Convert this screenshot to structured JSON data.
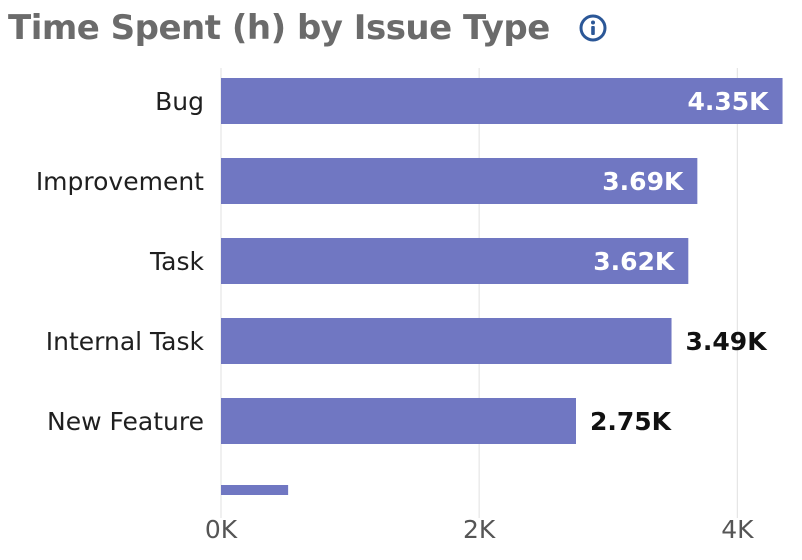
{
  "header": {
    "title": "Time Spent (h) by Issue Type",
    "info_icon": "info-icon"
  },
  "colors": {
    "bar": "#7077c2",
    "grid": "#e6e6e6",
    "label_inside": "#ffffff",
    "label_outside": "#111111",
    "title": "#6b6b6b",
    "info_icon": "#2b5797"
  },
  "chart_data": {
    "type": "bar",
    "orientation": "horizontal",
    "title": "Time Spent (h) by Issue Type",
    "categories": [
      "Bug",
      "Improvement",
      "Task",
      "Internal Task",
      "New Feature",
      ""
    ],
    "values": [
      4350,
      3690,
      3620,
      3490,
      2750,
      520
    ],
    "value_labels": [
      "4.35K",
      "3.69K",
      "3.62K",
      "3.49K",
      "2.75K",
      ""
    ],
    "xlim": [
      0,
      4400
    ],
    "x_ticks": [
      0,
      2000,
      4000
    ],
    "x_tick_labels": [
      "0K",
      "2K",
      "4K"
    ],
    "grid": true,
    "legend": "none"
  }
}
